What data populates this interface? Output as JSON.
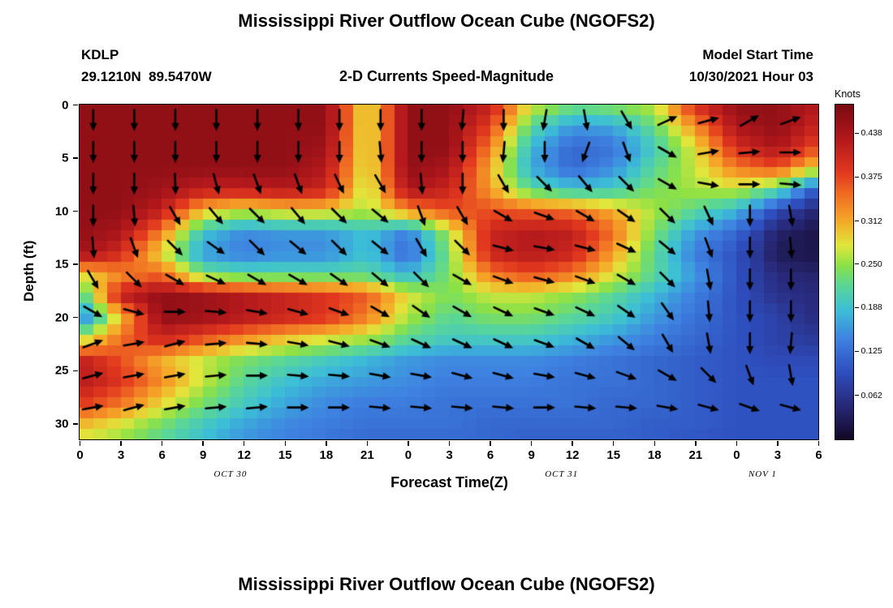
{
  "footer": {
    "next_chart_title": "Mississippi River Outflow Ocean Cube (NGOFS2)"
  },
  "chart_data": {
    "type": "heatmap",
    "overlay": "quiver",
    "title": "Mississippi River Outflow Ocean Cube (NGOFS2)",
    "station": "KDLP",
    "coords": "29.1210N  89.5470W",
    "subtitle": "2-D Currents Speed-Magnitude",
    "model_start_label": "Model Start Time",
    "model_start_value": "10/30/2021 Hour 03",
    "xlabel": "Forecast Time(Z)",
    "ylabel": "Depth (ft)",
    "x_range_hours": [
      0,
      54
    ],
    "depth_range_ft": [
      0,
      31.5
    ],
    "x_ticks": {
      "hours": [
        0,
        3,
        6,
        9,
        12,
        15,
        18,
        21,
        24,
        27,
        30,
        33,
        36,
        39,
        42,
        45,
        48,
        51,
        54
      ],
      "labels": [
        "0",
        "3",
        "6",
        "9",
        "12",
        "15",
        "18",
        "21",
        "0",
        "3",
        "6",
        "9",
        "12",
        "15",
        "18",
        "21",
        "0",
        "3",
        "6"
      ]
    },
    "y_ticks": [
      0,
      5,
      10,
      15,
      20,
      25,
      30
    ],
    "date_labels": [
      {
        "text": "OCT 30",
        "hour": 11
      },
      {
        "text": "OCT 31",
        "hour": 35.2
      },
      {
        "text": "NOV 1",
        "hour": 49.9
      }
    ],
    "colorbar": {
      "label": "Knots",
      "range": [
        0,
        0.48
      ],
      "ticks": [
        {
          "v": 0.438,
          "label": "0.438"
        },
        {
          "v": 0.375,
          "label": "0.375"
        },
        {
          "v": 0.312,
          "label": "0.312"
        },
        {
          "v": 0.25,
          "label": "0.250"
        },
        {
          "v": 0.188,
          "label": "0.188"
        },
        {
          "v": 0.125,
          "label": "0.125"
        },
        {
          "v": 0.062,
          "label": "0.062"
        }
      ]
    },
    "colormap_stops": [
      {
        "t": 0.0,
        "c": "#120826"
      },
      {
        "t": 0.1,
        "c": "#282878"
      },
      {
        "t": 0.2,
        "c": "#2e4ebe"
      },
      {
        "t": 0.3,
        "c": "#3e82e1"
      },
      {
        "t": 0.385,
        "c": "#3cbed7"
      },
      {
        "t": 0.46,
        "c": "#5ad796"
      },
      {
        "t": 0.52,
        "c": "#8ce146"
      },
      {
        "t": 0.58,
        "c": "#e1e63c"
      },
      {
        "t": 0.65,
        "c": "#f5aa28"
      },
      {
        "t": 0.73,
        "c": "#f06e23"
      },
      {
        "t": 0.8,
        "c": "#e1371e"
      },
      {
        "t": 0.9,
        "c": "#b2181c"
      },
      {
        "t": 1.0,
        "c": "#7a0a12"
      }
    ],
    "grid": {
      "hours": [
        0,
        3,
        6,
        9,
        12,
        15,
        18,
        21,
        24,
        27,
        30,
        33,
        36,
        39,
        42,
        45,
        48,
        51,
        54
      ],
      "depths": [
        0,
        2,
        4,
        6,
        8,
        10,
        12,
        14,
        16,
        18,
        20,
        22,
        24,
        26,
        28,
        30,
        32
      ],
      "speed_knots": [
        [
          0.46,
          0.46,
          0.46,
          0.46,
          0.46,
          0.46,
          0.46,
          0.27,
          0.46,
          0.46,
          0.42,
          0.28,
          0.24,
          0.25,
          0.27,
          0.4,
          0.46,
          0.46,
          0.43
        ],
        [
          0.46,
          0.46,
          0.46,
          0.46,
          0.46,
          0.46,
          0.46,
          0.27,
          0.46,
          0.46,
          0.38,
          0.22,
          0.16,
          0.17,
          0.23,
          0.33,
          0.44,
          0.46,
          0.41
        ],
        [
          0.46,
          0.46,
          0.46,
          0.46,
          0.46,
          0.46,
          0.45,
          0.27,
          0.46,
          0.46,
          0.34,
          0.18,
          0.12,
          0.13,
          0.2,
          0.28,
          0.4,
          0.44,
          0.37
        ],
        [
          0.46,
          0.46,
          0.46,
          0.46,
          0.46,
          0.46,
          0.43,
          0.27,
          0.46,
          0.44,
          0.31,
          0.17,
          0.12,
          0.15,
          0.22,
          0.27,
          0.34,
          0.37,
          0.28
        ],
        [
          0.46,
          0.46,
          0.45,
          0.42,
          0.42,
          0.43,
          0.41,
          0.26,
          0.44,
          0.41,
          0.32,
          0.22,
          0.19,
          0.2,
          0.24,
          0.26,
          0.27,
          0.22,
          0.1
        ],
        [
          0.46,
          0.46,
          0.42,
          0.3,
          0.27,
          0.29,
          0.29,
          0.26,
          0.33,
          0.37,
          0.37,
          0.36,
          0.35,
          0.31,
          0.26,
          0.22,
          0.18,
          0.09,
          0.04
        ],
        [
          0.46,
          0.44,
          0.34,
          0.19,
          0.15,
          0.16,
          0.16,
          0.19,
          0.14,
          0.26,
          0.41,
          0.43,
          0.42,
          0.35,
          0.24,
          0.16,
          0.12,
          0.04,
          0.02
        ],
        [
          0.45,
          0.4,
          0.28,
          0.16,
          0.14,
          0.15,
          0.15,
          0.19,
          0.12,
          0.24,
          0.41,
          0.43,
          0.41,
          0.32,
          0.22,
          0.14,
          0.1,
          0.03,
          0.02
        ],
        [
          0.28,
          0.33,
          0.36,
          0.24,
          0.22,
          0.22,
          0.22,
          0.22,
          0.18,
          0.24,
          0.34,
          0.37,
          0.34,
          0.28,
          0.22,
          0.16,
          0.1,
          0.05,
          0.04
        ],
        [
          0.2,
          0.42,
          0.46,
          0.45,
          0.43,
          0.41,
          0.39,
          0.36,
          0.28,
          0.24,
          0.27,
          0.27,
          0.25,
          0.22,
          0.18,
          0.14,
          0.1,
          0.06,
          0.05
        ],
        [
          0.13,
          0.3,
          0.46,
          0.45,
          0.43,
          0.41,
          0.39,
          0.34,
          0.26,
          0.22,
          0.24,
          0.24,
          0.22,
          0.2,
          0.16,
          0.13,
          0.1,
          0.08,
          0.05
        ],
        [
          0.26,
          0.35,
          0.41,
          0.37,
          0.33,
          0.3,
          0.28,
          0.26,
          0.22,
          0.2,
          0.2,
          0.2,
          0.18,
          0.16,
          0.14,
          0.12,
          0.1,
          0.08,
          0.07
        ],
        [
          0.42,
          0.37,
          0.31,
          0.27,
          0.24,
          0.22,
          0.2,
          0.18,
          0.16,
          0.15,
          0.15,
          0.15,
          0.14,
          0.13,
          0.12,
          0.11,
          0.1,
          0.09,
          0.09
        ],
        [
          0.43,
          0.39,
          0.33,
          0.27,
          0.22,
          0.19,
          0.17,
          0.16,
          0.15,
          0.14,
          0.14,
          0.14,
          0.13,
          0.13,
          0.12,
          0.11,
          0.1,
          0.1,
          0.1
        ],
        [
          0.39,
          0.35,
          0.29,
          0.24,
          0.2,
          0.17,
          0.15,
          0.14,
          0.14,
          0.13,
          0.13,
          0.13,
          0.13,
          0.12,
          0.12,
          0.11,
          0.1,
          0.1,
          0.1
        ],
        [
          0.31,
          0.28,
          0.24,
          0.2,
          0.17,
          0.15,
          0.14,
          0.13,
          0.13,
          0.13,
          0.12,
          0.12,
          0.12,
          0.12,
          0.11,
          0.11,
          0.1,
          0.1,
          0.1
        ],
        [
          0.26,
          0.24,
          0.21,
          0.18,
          0.15,
          0.14,
          0.13,
          0.12,
          0.12,
          0.12,
          0.12,
          0.11,
          0.11,
          0.11,
          0.11,
          0.1,
          0.1,
          0.1,
          0.1
        ]
      ]
    },
    "quiver": {
      "hours": [
        1,
        4,
        7,
        10,
        13,
        16,
        19,
        22,
        25,
        28,
        31,
        34,
        37,
        40,
        43,
        46,
        49,
        52
      ],
      "depths": [
        1.5,
        4.5,
        7.5,
        10.5,
        13.5,
        16.5,
        19.5,
        22.5,
        25.5,
        28.5
      ],
      "angles_deg": [
        [
          -90,
          -90,
          -90,
          -90,
          -90,
          -90,
          -90,
          -90,
          -90,
          -95,
          -90,
          -100,
          -80,
          -60,
          25,
          15,
          30,
          20
        ],
        [
          -90,
          -90,
          -90,
          -90,
          -90,
          -90,
          -90,
          -85,
          -90,
          -90,
          -95,
          -90,
          -110,
          -70,
          -30,
          10,
          5,
          0
        ],
        [
          -90,
          -90,
          -88,
          -75,
          -70,
          -70,
          -65,
          -60,
          -85,
          -90,
          -60,
          -45,
          -50,
          -45,
          -30,
          -10,
          0,
          -5
        ],
        [
          -90,
          -85,
          -60,
          -50,
          -45,
          -50,
          -45,
          -40,
          -70,
          -60,
          -30,
          -20,
          -30,
          -35,
          -45,
          -65,
          -90,
          -80
        ],
        [
          -85,
          -70,
          -45,
          -35,
          -45,
          -40,
          -45,
          -40,
          -60,
          -45,
          -15,
          -10,
          -15,
          -25,
          -40,
          -70,
          -90,
          -85
        ],
        [
          -60,
          -45,
          -30,
          -25,
          -30,
          -30,
          -35,
          -40,
          -45,
          -30,
          -20,
          -15,
          -20,
          -30,
          -45,
          -80,
          -90,
          -90
        ],
        [
          -30,
          -15,
          0,
          -5,
          -10,
          -15,
          -20,
          -30,
          -35,
          -30,
          -25,
          -20,
          -25,
          -35,
          -55,
          -85,
          -90,
          -90
        ],
        [
          20,
          10,
          15,
          5,
          -5,
          -10,
          -15,
          -20,
          -25,
          -25,
          -25,
          -20,
          -30,
          -40,
          -60,
          -80,
          -90,
          -95
        ],
        [
          15,
          10,
          10,
          5,
          0,
          -5,
          -5,
          -10,
          -10,
          -15,
          -15,
          -10,
          -15,
          -20,
          -30,
          -45,
          -70,
          -80
        ],
        [
          10,
          15,
          10,
          5,
          5,
          0,
          0,
          -5,
          -5,
          -5,
          -5,
          0,
          -5,
          -5,
          -10,
          -15,
          -20,
          -15
        ]
      ]
    }
  }
}
